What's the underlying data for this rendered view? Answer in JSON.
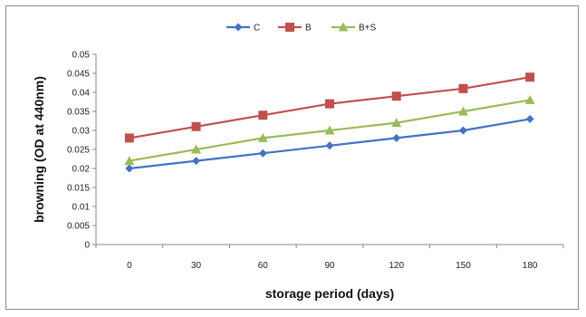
{
  "chart_data": {
    "type": "line",
    "title": "",
    "xlabel": "storage period (days)",
    "ylabel": "browning (OD at 440nm)",
    "categories": [
      "0",
      "30",
      "60",
      "90",
      "120",
      "150",
      "180"
    ],
    "ylim": [
      0,
      0.05
    ],
    "yticks": [
      "0",
      "0.005",
      "0.01",
      "0.015",
      "0.02",
      "0.025",
      "0.03",
      "0.035",
      "0.04",
      "0.045",
      "0.05"
    ],
    "grid": false,
    "legend_position": "top",
    "series": [
      {
        "name": "C",
        "values": [
          0.02,
          0.022,
          0.024,
          0.026,
          0.028,
          0.03,
          0.033
        ],
        "color": "#4472c4",
        "marker": "diamond"
      },
      {
        "name": "B",
        "values": [
          0.028,
          0.031,
          0.034,
          0.037,
          0.039,
          0.041,
          0.044
        ],
        "color": "#c0504d",
        "marker": "square"
      },
      {
        "name": "B+S",
        "values": [
          0.022,
          0.025,
          0.028,
          0.03,
          0.032,
          0.035,
          0.038
        ],
        "color": "#9bbb59",
        "marker": "triangle"
      }
    ]
  }
}
